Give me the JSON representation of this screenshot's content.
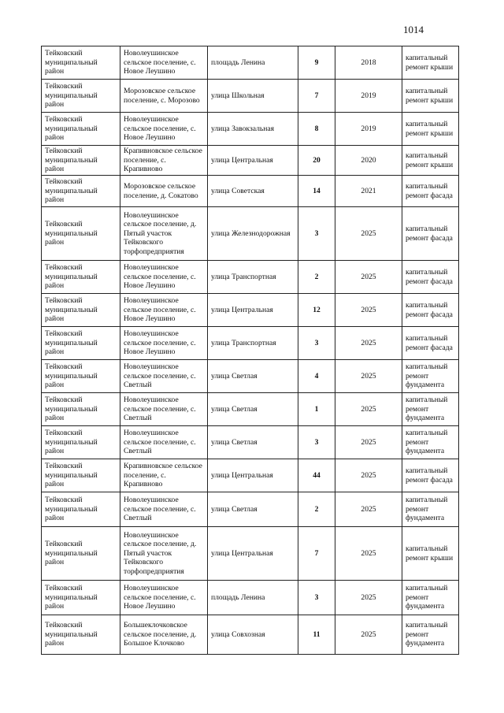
{
  "page_number": "1014",
  "rows": [
    {
      "district": "Тейковский муниципальный район",
      "settlement": "Новолеушинское сельское поселение, с. Новое Леушино",
      "street": "площадь Ленина",
      "house": "9",
      "year": "2018",
      "work": "капитальный ремонт крыши"
    },
    {
      "district": "Тейковский муниципальный район",
      "settlement": "Морозовское сельское поселение, с. Морозово",
      "street": "улица  Школьная",
      "house": "7",
      "year": "2019",
      "work": "капитальный ремонт крыши"
    },
    {
      "district": "Тейковский муниципальный район",
      "settlement": "Новолеушинское сельское поселение, с. Новое Леушино",
      "street": "улица Завокзальная",
      "house": "8",
      "year": "2019",
      "work": "капитальный ремонт крыши"
    },
    {
      "district": "Тейковский муниципальный район",
      "settlement": "Крапивновское сельское поселение, с. Крапивново",
      "street": "улица Центральная",
      "house": "20",
      "year": "2020",
      "work": "капитальный ремонт крыши"
    },
    {
      "district": "Тейковский муниципальный район",
      "settlement": "Морозовское сельское поселение, д. Сокатово",
      "street": "улица  Советская",
      "house": "14",
      "year": "2021",
      "work": "капитальный ремонт фасада"
    },
    {
      "district": "Тейковский муниципальный район",
      "settlement": "Новолеушинское сельское поселение, д. Пятый участок Тейковского торфопредприятия",
      "street": "улица Железнодорожная",
      "house": "3",
      "year": "2025",
      "work": "капитальный ремонт фасада"
    },
    {
      "district": "Тейковский муниципальный район",
      "settlement": "Новолеушинское сельское поселение, с. Новое Леушино",
      "street": "улица Транспортная",
      "house": "2",
      "year": "2025",
      "work": "капитальный ремонт фасада"
    },
    {
      "district": "Тейковский муниципальный район",
      "settlement": "Новолеушинское сельское поселение, с. Новое Леушино",
      "street": "улица Центральная",
      "house": "12",
      "year": "2025",
      "work": "капитальный ремонт фасада"
    },
    {
      "district": "Тейковский муниципальный район",
      "settlement": "Новолеушинское сельское поселение, с. Новое Леушино",
      "street": "улица Транспортная",
      "house": "3",
      "year": "2025",
      "work": "капитальный ремонт фасада"
    },
    {
      "district": "Тейковский муниципальный район",
      "settlement": "Новолеушинское сельское поселение, с. Светлый",
      "street": "улица Светлая",
      "house": "4",
      "year": "2025",
      "work": "капитальный ремонт фундамента"
    },
    {
      "district": "Тейковский муниципальный район",
      "settlement": "Новолеушинское сельское поселение, с. Светлый",
      "street": "улица Светлая",
      "house": "1",
      "year": "2025",
      "work": "капитальный ремонт фундамента"
    },
    {
      "district": "Тейковский муниципальный район",
      "settlement": "Новолеушинское сельское поселение, с. Светлый",
      "street": "улица Светлая",
      "house": "3",
      "year": "2025",
      "work": "капитальный ремонт фундамента"
    },
    {
      "district": "Тейковский муниципальный район",
      "settlement": "Крапивновское сельское поселение, с. Крапивново",
      "street": "улица Центральная",
      "house": "44",
      "year": "2025",
      "work": "капитальный ремонт фасада"
    },
    {
      "district": "Тейковский муниципальный район",
      "settlement": "Новолеушинское сельское поселение, с. Светлый",
      "street": "улица Светлая",
      "house": "2",
      "year": "2025",
      "work": "капитальный ремонт фундамента"
    },
    {
      "district": "Тейковский муниципальный район",
      "settlement": "Новолеушинское сельское поселение, д. Пятый участок Тейковского торфопредприятия",
      "street": "улица Центральная",
      "house": "7",
      "year": "2025",
      "work": "капитальный ремонт крыши"
    },
    {
      "district": "Тейковский муниципальный район",
      "settlement": "Новолеушинское сельское поселение, с. Новое Леушино",
      "street": "площадь Ленина",
      "house": "3",
      "year": "2025",
      "work": "капитальный ремонт фундамента"
    },
    {
      "district": "Тейковский муниципальный район",
      "settlement": "Большеклочковское сельское поселение, д. Большое Клочково",
      "street": "улица Совхозная",
      "house": "11",
      "year": "2025",
      "work": "капитальный ремонт фундамента"
    }
  ]
}
